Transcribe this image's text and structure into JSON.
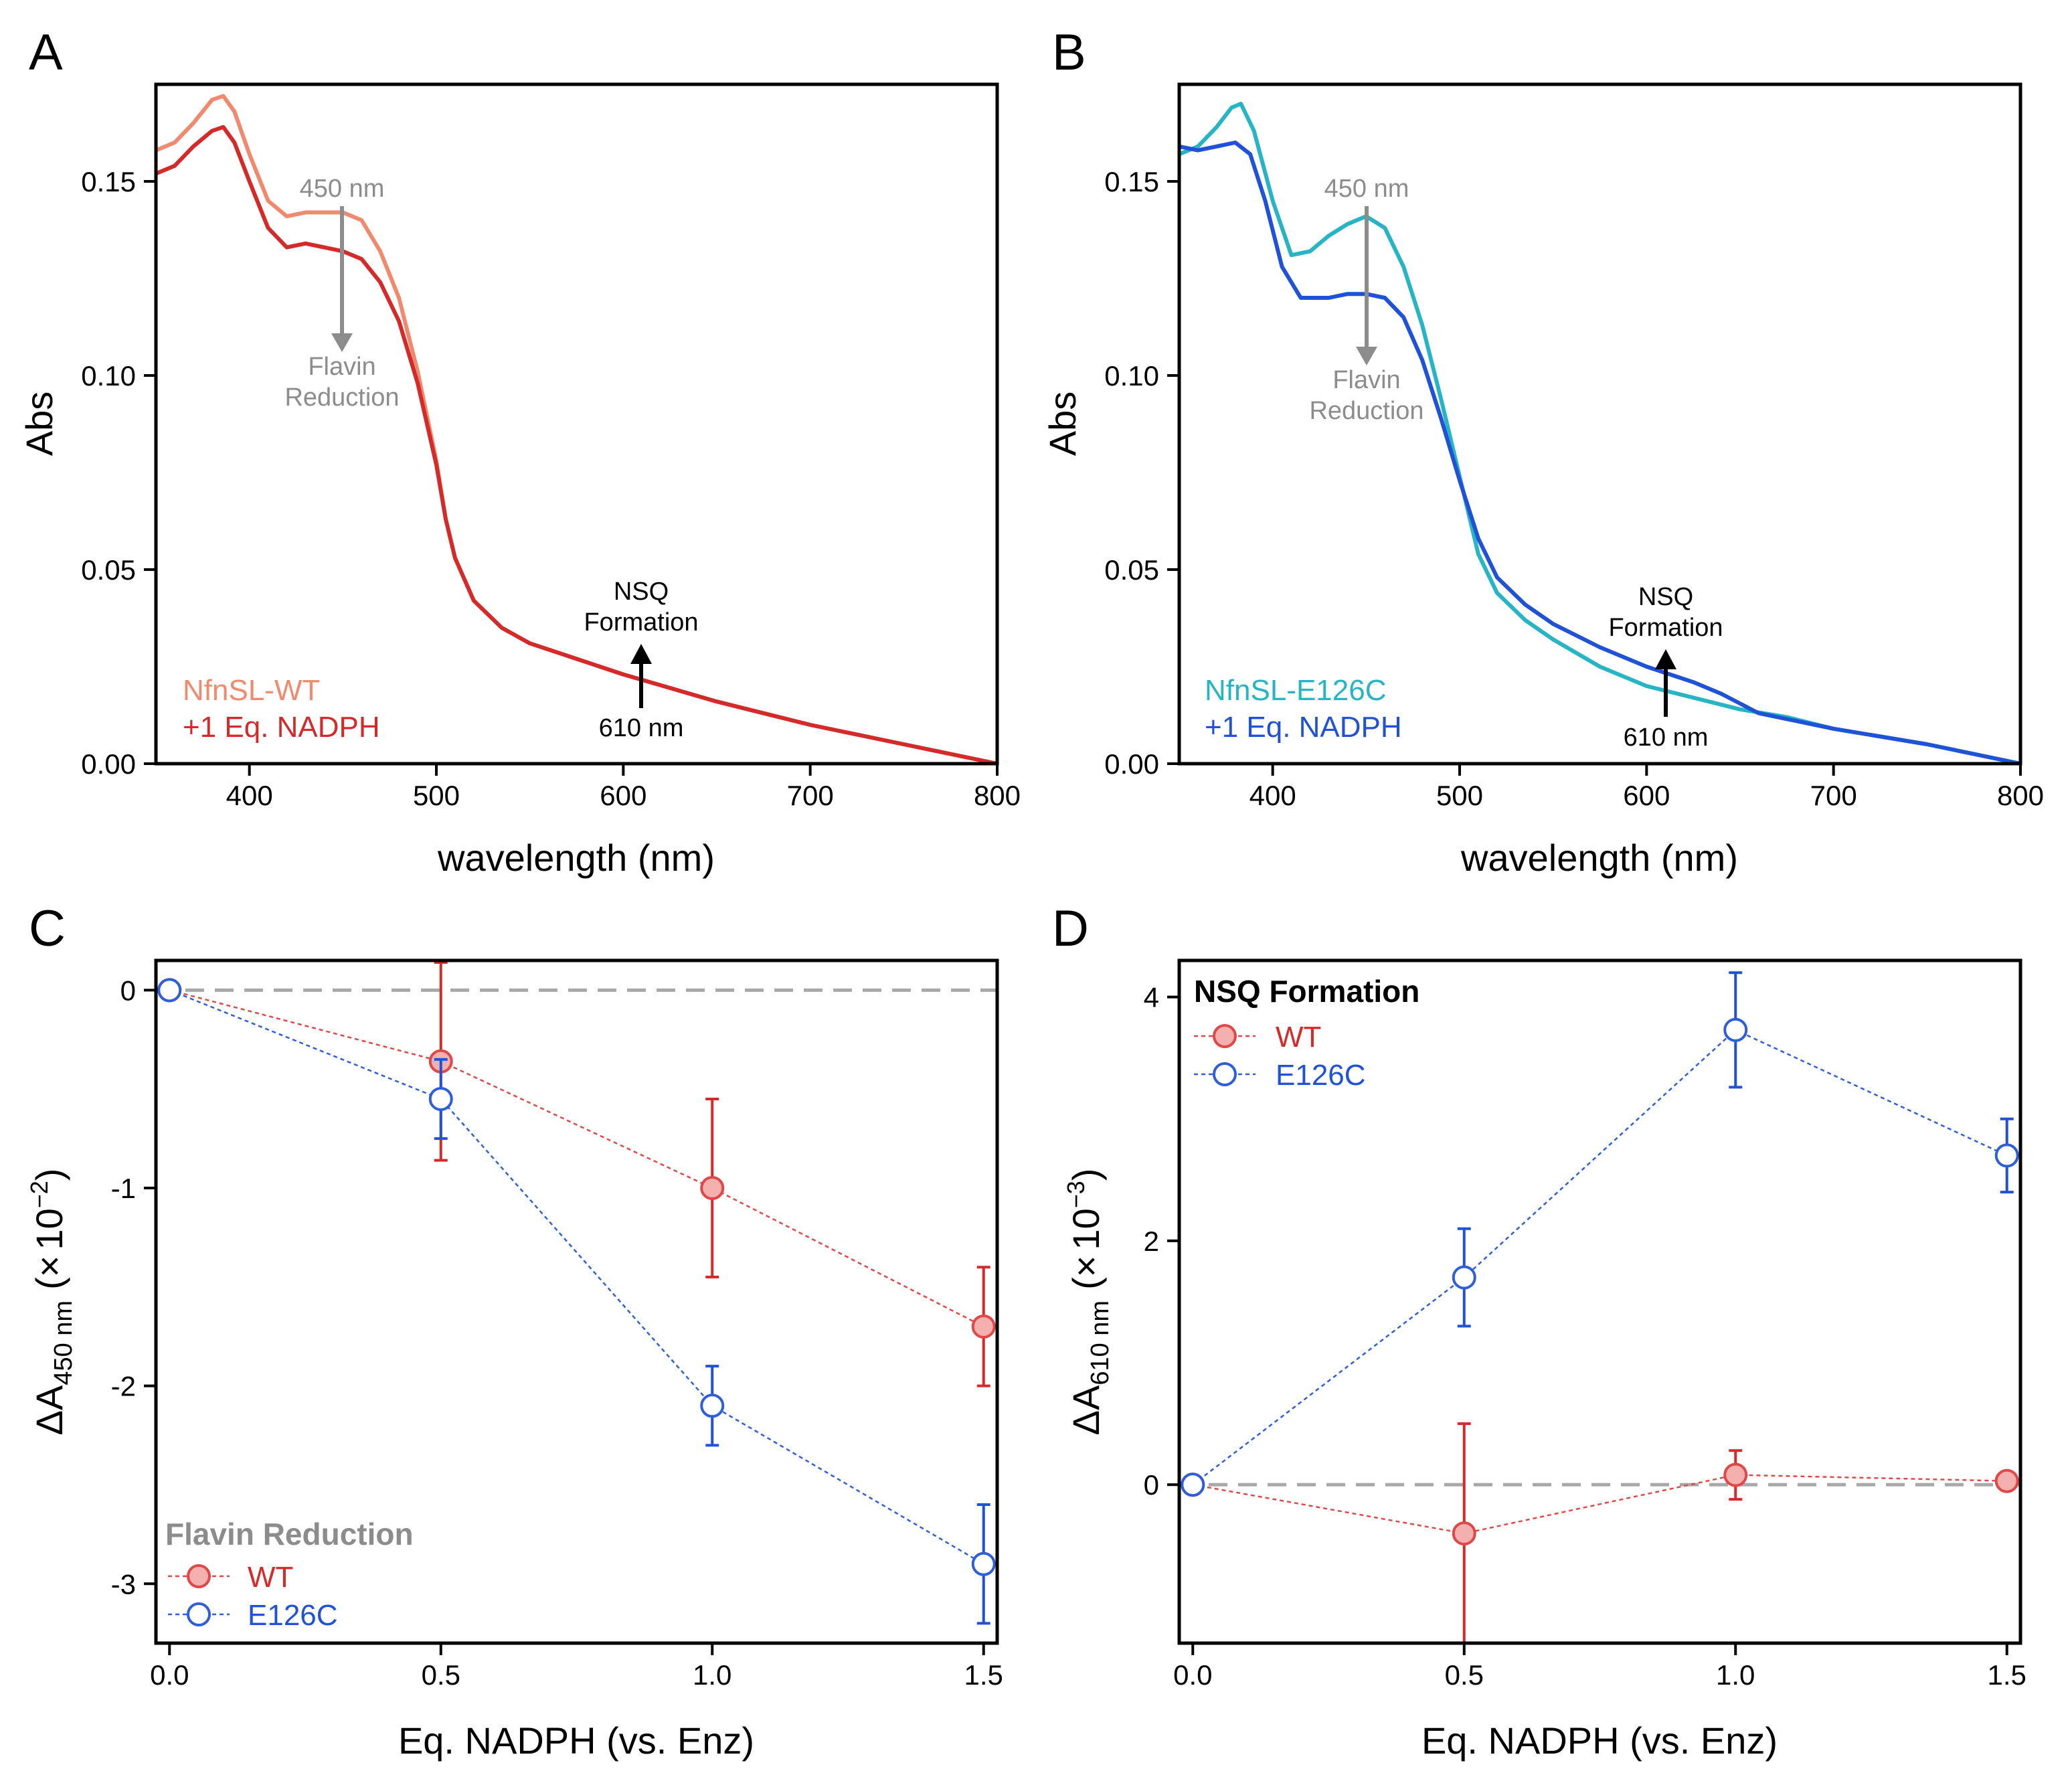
{
  "colors": {
    "wt_light": "#F08A6E",
    "wt_dark": "#D42A2A",
    "e126c_light": "#27B4C4",
    "e126c_dark": "#1F52D6",
    "wt_marker": "#E04848",
    "wt_marker_fill": "#F4AFAF",
    "e126c_marker": "#2F5FD8",
    "gray": "#8C8C8C",
    "zero_line": "#A8A8A8"
  },
  "chart_data": [
    {
      "id": "A",
      "panel_label": "A",
      "type": "line",
      "xlabel": "wavelength (nm)",
      "ylabel": "Abs",
      "xlim": [
        350,
        800
      ],
      "ylim": [
        0,
        0.175
      ],
      "x_ticks": [
        400,
        500,
        600,
        700,
        800
      ],
      "x_tick_labels": [
        "400",
        "500",
        "600",
        "700",
        "800"
      ],
      "y_ticks": [
        0,
        0.05,
        0.1,
        0.15
      ],
      "y_tick_labels": [
        "0.00",
        "0.05",
        "0.10",
        "0.15"
      ],
      "series": [
        {
          "name": "NfnSL-WT",
          "color": "#F08A6E",
          "points": [
            [
              350,
              0.158
            ],
            [
              360,
              0.16
            ],
            [
              370,
              0.165
            ],
            [
              380,
              0.171
            ],
            [
              386,
              0.172
            ],
            [
              392,
              0.168
            ],
            [
              400,
              0.157
            ],
            [
              410,
              0.145
            ],
            [
              420,
              0.141
            ],
            [
              430,
              0.142
            ],
            [
              440,
              0.142
            ],
            [
              450,
              0.142
            ],
            [
              460,
              0.14
            ],
            [
              470,
              0.132
            ],
            [
              480,
              0.12
            ],
            [
              490,
              0.101
            ],
            [
              500,
              0.078
            ],
            [
              505,
              0.063
            ],
            [
              510,
              0.053
            ],
            [
              520,
              0.042
            ],
            [
              535,
              0.035
            ],
            [
              550,
              0.031
            ],
            [
              575,
              0.027
            ],
            [
              600,
              0.023
            ],
            [
              650,
              0.016
            ],
            [
              700,
              0.01
            ],
            [
              750,
              0.005
            ],
            [
              800,
              0.0
            ]
          ]
        },
        {
          "name": "+1 Eq. NADPH",
          "color": "#D42A2A",
          "points": [
            [
              350,
              0.152
            ],
            [
              360,
              0.154
            ],
            [
              370,
              0.159
            ],
            [
              380,
              0.163
            ],
            [
              386,
              0.164
            ],
            [
              392,
              0.16
            ],
            [
              400,
              0.15
            ],
            [
              410,
              0.138
            ],
            [
              420,
              0.133
            ],
            [
              430,
              0.134
            ],
            [
              440,
              0.133
            ],
            [
              450,
              0.132
            ],
            [
              460,
              0.13
            ],
            [
              470,
              0.124
            ],
            [
              480,
              0.114
            ],
            [
              490,
              0.098
            ],
            [
              500,
              0.077
            ],
            [
              505,
              0.063
            ],
            [
              510,
              0.053
            ],
            [
              520,
              0.042
            ],
            [
              535,
              0.035
            ],
            [
              550,
              0.031
            ],
            [
              575,
              0.027
            ],
            [
              600,
              0.023
            ],
            [
              650,
              0.016
            ],
            [
              700,
              0.01
            ],
            [
              750,
              0.005
            ],
            [
              800,
              0.0
            ]
          ]
        }
      ],
      "annotations": {
        "top_label": "450 nm",
        "top_text_1": "Flavin",
        "top_text_2": "Reduction",
        "bottom_text_1": "NSQ",
        "bottom_text_2": "Formation",
        "bottom_label": "610 nm"
      },
      "legend": [
        "NfnSL-WT",
        "+1 Eq. NADPH"
      ]
    },
    {
      "id": "B",
      "panel_label": "B",
      "type": "line",
      "xlabel": "wavelength (nm)",
      "ylabel": "Abs",
      "xlim": [
        350,
        800
      ],
      "ylim": [
        0,
        0.175
      ],
      "x_ticks": [
        400,
        500,
        600,
        700,
        800
      ],
      "x_tick_labels": [
        "400",
        "500",
        "600",
        "700",
        "800"
      ],
      "y_ticks": [
        0,
        0.05,
        0.1,
        0.15
      ],
      "y_tick_labels": [
        "0.00",
        "0.05",
        "0.10",
        "0.15"
      ],
      "series": [
        {
          "name": "NfnSL-E126C",
          "color": "#27B4C4",
          "points": [
            [
              350,
              0.157
            ],
            [
              360,
              0.159
            ],
            [
              370,
              0.164
            ],
            [
              378,
              0.169
            ],
            [
              383,
              0.17
            ],
            [
              390,
              0.163
            ],
            [
              400,
              0.145
            ],
            [
              410,
              0.131
            ],
            [
              420,
              0.132
            ],
            [
              430,
              0.136
            ],
            [
              440,
              0.139
            ],
            [
              450,
              0.141
            ],
            [
              460,
              0.138
            ],
            [
              470,
              0.128
            ],
            [
              480,
              0.113
            ],
            [
              490,
              0.094
            ],
            [
              500,
              0.074
            ],
            [
              510,
              0.054
            ],
            [
              520,
              0.044
            ],
            [
              535,
              0.037
            ],
            [
              550,
              0.032
            ],
            [
              575,
              0.025
            ],
            [
              600,
              0.02
            ],
            [
              625,
              0.017
            ],
            [
              650,
              0.014
            ],
            [
              675,
              0.012
            ],
            [
              700,
              0.009
            ],
            [
              750,
              0.005
            ],
            [
              800,
              0.0
            ]
          ]
        },
        {
          "name": "+1 Eq. NADPH",
          "color": "#1F52D6",
          "points": [
            [
              350,
              0.159
            ],
            [
              360,
              0.158
            ],
            [
              370,
              0.159
            ],
            [
              380,
              0.16
            ],
            [
              388,
              0.157
            ],
            [
              396,
              0.145
            ],
            [
              405,
              0.128
            ],
            [
              415,
              0.12
            ],
            [
              430,
              0.12
            ],
            [
              440,
              0.121
            ],
            [
              450,
              0.121
            ],
            [
              460,
              0.12
            ],
            [
              470,
              0.115
            ],
            [
              480,
              0.104
            ],
            [
              490,
              0.089
            ],
            [
              500,
              0.073
            ],
            [
              510,
              0.058
            ],
            [
              520,
              0.048
            ],
            [
              535,
              0.041
            ],
            [
              550,
              0.036
            ],
            [
              575,
              0.03
            ],
            [
              600,
              0.025
            ],
            [
              625,
              0.021
            ],
            [
              640,
              0.018
            ],
            [
              660,
              0.013
            ],
            [
              700,
              0.009
            ],
            [
              750,
              0.005
            ],
            [
              800,
              0.0
            ]
          ]
        }
      ],
      "annotations": {
        "top_label": "450 nm",
        "top_text_1": "Flavin",
        "top_text_2": "Reduction",
        "bottom_text_1": "NSQ",
        "bottom_text_2": "Formation",
        "bottom_label": "610 nm"
      },
      "legend": [
        "NfnSL-E126C",
        "+1 Eq. NADPH"
      ]
    },
    {
      "id": "C",
      "panel_label": "C",
      "type": "scatter",
      "xlabel": "Eq. NADPH (vs. Enz)",
      "ylabel_main": "ΔA",
      "ylabel_sub": "450 nm",
      "ylabel_paren_open": "(",
      "ylabel_mult": "×",
      "ylabel_base": "10",
      "ylabel_exp": "−2",
      "ylabel_paren_close": ")",
      "xlim": [
        -0.025,
        1.525
      ],
      "ylim": [
        -3.3,
        0.15
      ],
      "x_ticks": [
        0,
        0.5,
        1.0,
        1.5
      ],
      "x_tick_labels": [
        "0.0",
        "0.5",
        "1.0",
        "1.5"
      ],
      "y_ticks": [
        0,
        -1,
        -2,
        -3
      ],
      "y_tick_labels": [
        "0",
        "-1",
        "-2",
        "-3"
      ],
      "zero_line": 0,
      "legend_title": "Flavin Reduction",
      "series": [
        {
          "name": "WT",
          "x": [
            0,
            0.5,
            1.0,
            1.5
          ],
          "y": [
            0,
            -0.36,
            -1.0,
            -1.7
          ],
          "err": [
            0,
            0.5,
            0.45,
            0.3
          ]
        },
        {
          "name": "E126C",
          "x": [
            0,
            0.5,
            1.0,
            1.5
          ],
          "y": [
            0,
            -0.55,
            -2.1,
            -2.9
          ],
          "err": [
            0,
            0.2,
            0.2,
            0.3
          ]
        }
      ]
    },
    {
      "id": "D",
      "panel_label": "D",
      "type": "scatter",
      "xlabel": "Eq. NADPH (vs. Enz)",
      "ylabel_main": "ΔA",
      "ylabel_sub": "610 nm",
      "ylabel_paren_open": "(",
      "ylabel_mult": "×",
      "ylabel_base": "10",
      "ylabel_exp": "−3",
      "ylabel_paren_close": ")",
      "xlim": [
        -0.025,
        1.525
      ],
      "ylim": [
        -1.3,
        4.3
      ],
      "x_ticks": [
        0,
        0.5,
        1.0,
        1.5
      ],
      "x_tick_labels": [
        "0.0",
        "0.5",
        "1.0",
        "1.5"
      ],
      "y_ticks": [
        0,
        2,
        4
      ],
      "y_tick_labels": [
        "0",
        "2",
        "4"
      ],
      "zero_line": 0,
      "legend_title": "NSQ Formation",
      "series": [
        {
          "name": "WT",
          "x": [
            0,
            0.5,
            1.0,
            1.5
          ],
          "y": [
            0,
            -0.4,
            0.08,
            0.03
          ],
          "err": [
            0,
            0.9,
            0.2,
            0
          ]
        },
        {
          "name": "E126C",
          "x": [
            0,
            0.5,
            1.0,
            1.5
          ],
          "y": [
            0,
            1.7,
            3.73,
            2.7
          ],
          "err": [
            0,
            0.4,
            0.47,
            0.3
          ]
        }
      ]
    }
  ]
}
